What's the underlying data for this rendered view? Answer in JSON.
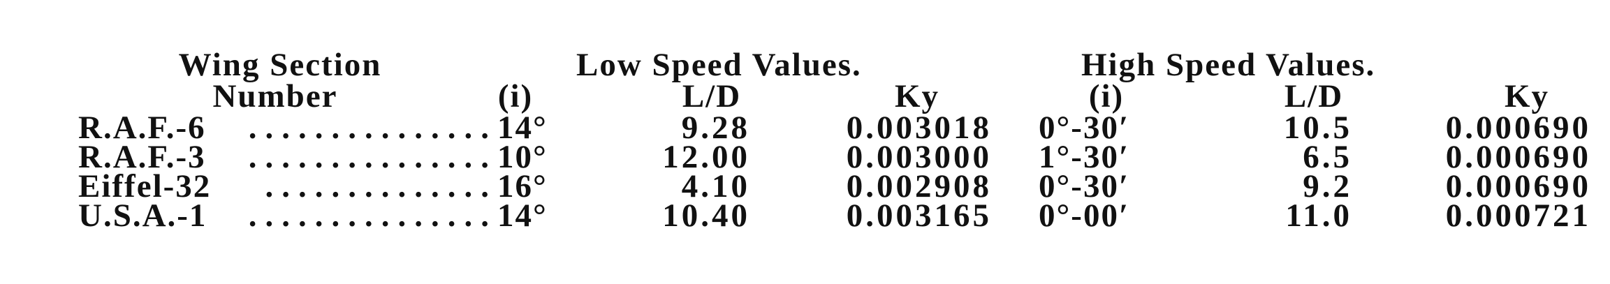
{
  "headers": {
    "wing_section": "Wing Section",
    "number": "Number",
    "low_speed": "Low Speed Values.",
    "high_speed": "High Speed Values.",
    "low_i": "(i)",
    "low_ld": "L/D",
    "low_ky": "Ky",
    "high_i": "(i)",
    "high_ld": "L/D",
    "high_ky": "Ky"
  },
  "rows": [
    {
      "name": "R.A.F.-6",
      "dots": "...............",
      "low_i": "14°",
      "low_ld": "9.28",
      "low_ky": "0.003018",
      "high_i": "0°-30′",
      "high_ld": "10.5",
      "high_ky": "0.000690"
    },
    {
      "name": "R.A.F.-3",
      "dots": "...............",
      "low_i": "10°",
      "low_ld": "12.00",
      "low_ky": "0.003000",
      "high_i": "1°-30′",
      "high_ld": "6.5",
      "high_ky": "0.000690"
    },
    {
      "name": "Eiffel-32",
      "dots": "..............",
      "low_i": "16°",
      "low_ld": "4.10",
      "low_ky": "0.002908",
      "high_i": "0°-30′",
      "high_ld": "9.2",
      "high_ky": "0.000690"
    },
    {
      "name": "U.S.A.-1",
      "dots": "...............",
      "low_i": "14°",
      "low_ld": "10.40",
      "low_ky": "0.003165",
      "high_i": "0°-00′",
      "high_ld": "11.0",
      "high_ky": "0.000721"
    }
  ]
}
